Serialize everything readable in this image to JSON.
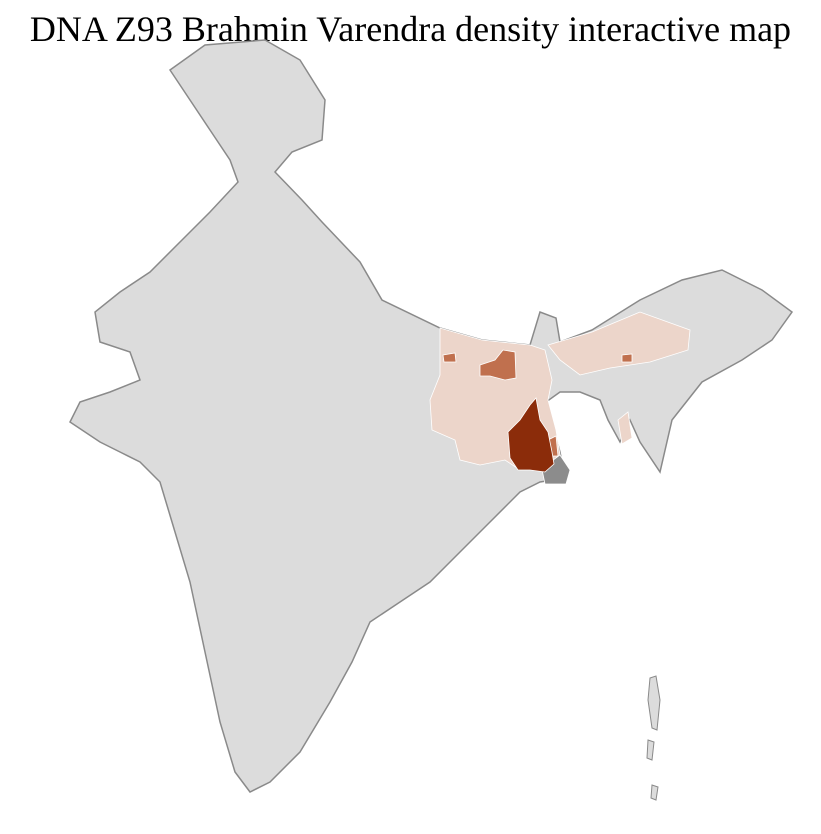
{
  "title": "DNA Z93 Brahmin Varendra density interactive map",
  "colors": {
    "no_data": "#dcdcdc",
    "district_border": "#ffffff",
    "state_border": "#8a8a8a",
    "neighbour_region": "#8c8c8c",
    "density_low": "#ecd5ca",
    "density_medium": "#c0704e",
    "density_high": "#8b2c0a"
  },
  "density_levels": [
    "no_data",
    "low",
    "medium",
    "high"
  ]
}
